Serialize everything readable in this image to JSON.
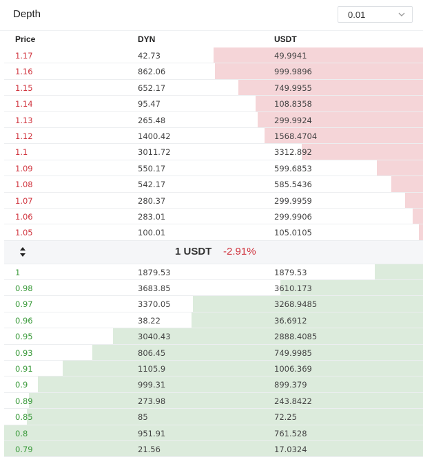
{
  "header": {
    "title": "Depth",
    "precision": "0.01"
  },
  "columns": {
    "price": "Price",
    "base": "DYN",
    "quote": "USDT"
  },
  "colors": {
    "ask": "#d0343e",
    "bid": "#3a9a3a",
    "ask_bar": "#f5d5d8",
    "bid_bar": "#dcebdc"
  },
  "icons": {
    "precision": "chevron-down-icon",
    "mid": "sort-arrows-icon"
  },
  "asks": [
    {
      "price": "1.17",
      "amount": "42.73",
      "total": "49.9941",
      "depth": 0.5
    },
    {
      "price": "1.16",
      "amount": "862.06",
      "total": "999.9896",
      "depth": 0.497
    },
    {
      "price": "1.15",
      "amount": "652.17",
      "total": "749.9955",
      "depth": 0.44
    },
    {
      "price": "1.14",
      "amount": "95.47",
      "total": "108.8358",
      "depth": 0.4
    },
    {
      "price": "1.13",
      "amount": "265.48",
      "total": "299.9924",
      "depth": 0.395
    },
    {
      "price": "1.12",
      "amount": "1400.42",
      "total": "1568.4704",
      "depth": 0.378
    },
    {
      "price": "1.1",
      "amount": "3011.72",
      "total": "3312.892",
      "depth": 0.29
    },
    {
      "price": "1.09",
      "amount": "550.17",
      "total": "599.6853",
      "depth": 0.11
    },
    {
      "price": "1.08",
      "amount": "542.17",
      "total": "585.5436",
      "depth": 0.075
    },
    {
      "price": "1.07",
      "amount": "280.37",
      "total": "299.9959",
      "depth": 0.043
    },
    {
      "price": "1.06",
      "amount": "283.01",
      "total": "299.9906",
      "depth": 0.025
    },
    {
      "price": "1.05",
      "amount": "100.01",
      "total": "105.0105",
      "depth": 0.01
    }
  ],
  "mid": {
    "price": "1 USDT",
    "change": "-2.91%"
  },
  "bids": [
    {
      "price": "1",
      "amount": "1879.53",
      "total": "1879.53",
      "depth": 0.115
    },
    {
      "price": "0.98",
      "amount": "3683.85",
      "total": "3610.173",
      "depth": 0.34
    },
    {
      "price": "0.97",
      "amount": "3370.05",
      "total": "3268.9485",
      "depth": 0.55
    },
    {
      "price": "0.96",
      "amount": "38.22",
      "total": "36.6912",
      "depth": 0.552
    },
    {
      "price": "0.95",
      "amount": "3040.43",
      "total": "2888.4085",
      "depth": 0.74
    },
    {
      "price": "0.93",
      "amount": "806.45",
      "total": "749.9985",
      "depth": 0.79
    },
    {
      "price": "0.91",
      "amount": "1105.9",
      "total": "1006.369",
      "depth": 0.86
    },
    {
      "price": "0.9",
      "amount": "999.31",
      "total": "899.379",
      "depth": 0.92
    },
    {
      "price": "0.89",
      "amount": "273.98",
      "total": "243.8422",
      "depth": 0.94
    },
    {
      "price": "0.85",
      "amount": "85",
      "total": "72.25",
      "depth": 0.946
    },
    {
      "price": "0.8",
      "amount": "951.91",
      "total": "761.528",
      "depth": 1.0
    },
    {
      "price": "0.79",
      "amount": "21.56",
      "total": "17.0324",
      "depth": 1.0
    }
  ]
}
